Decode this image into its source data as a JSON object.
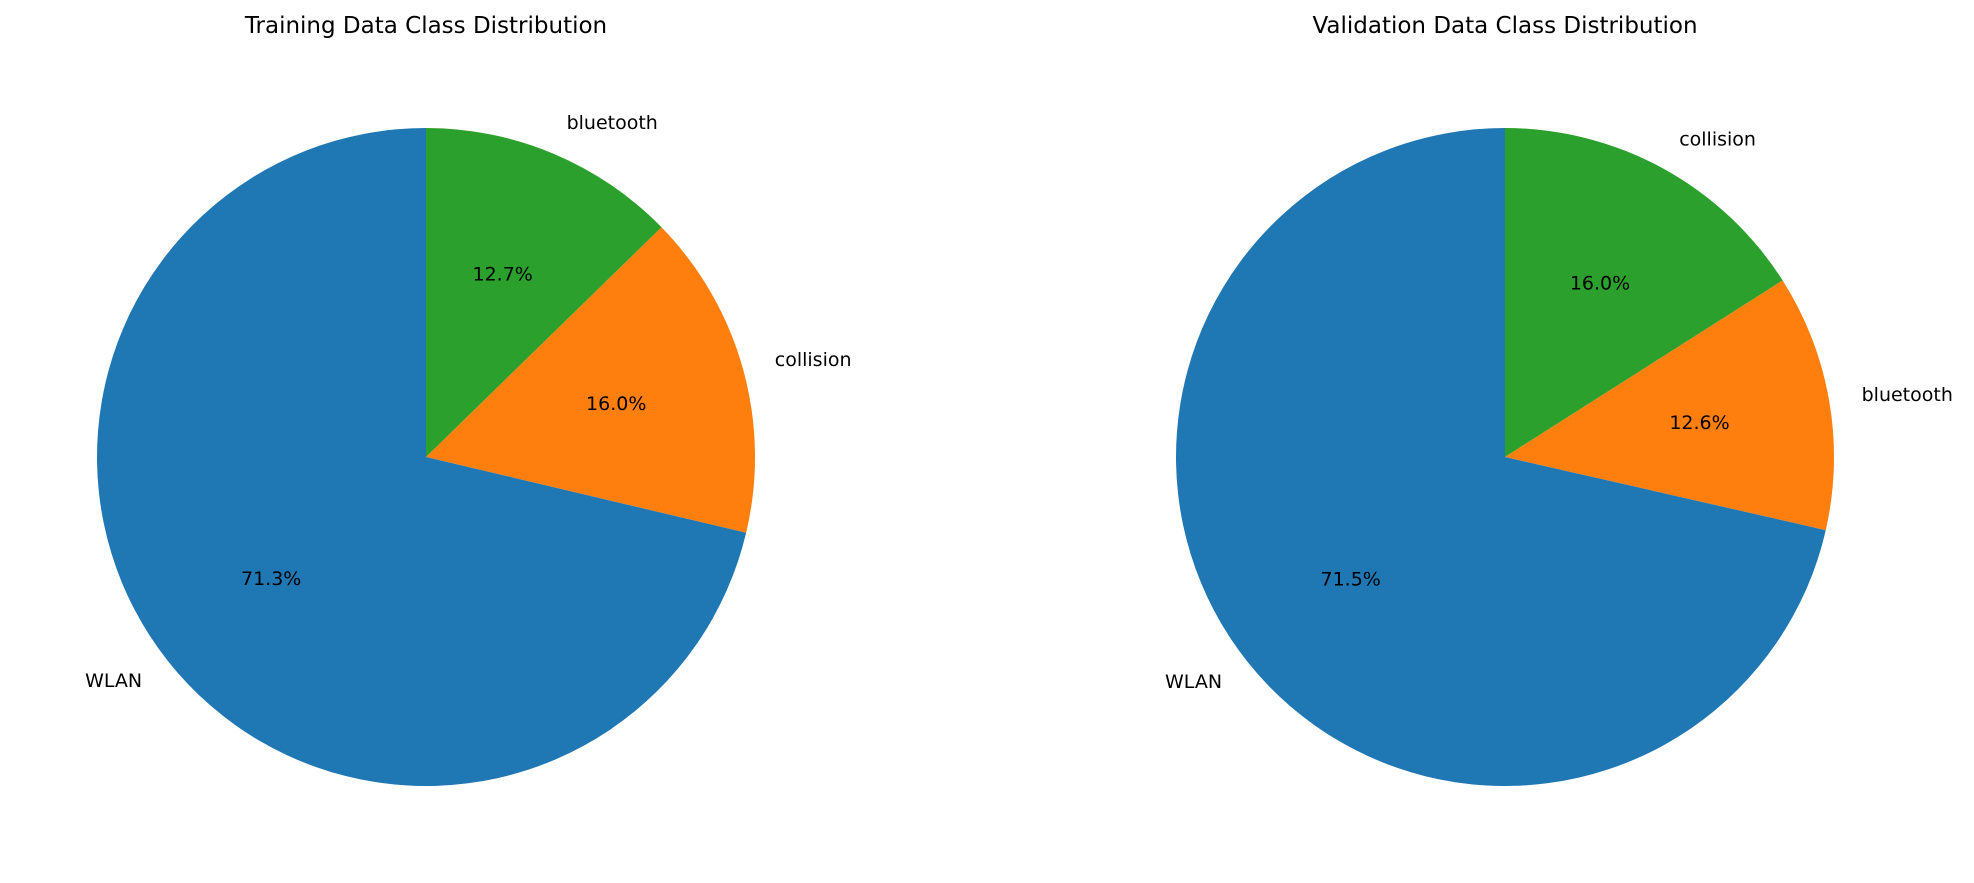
{
  "chart_data": [
    {
      "type": "pie",
      "title": "Training Data Class Distribution",
      "start_angle_deg": 90,
      "direction": "clockwise",
      "slices": [
        {
          "label": "bluetooth",
          "value": 12.7,
          "pct_label": "12.7%",
          "color": "#2ca02c"
        },
        {
          "label": "collision",
          "value": 16.0,
          "pct_label": "16.0%",
          "color": "#ff7f0e"
        },
        {
          "label": "WLAN",
          "value": 71.3,
          "pct_label": "71.3%",
          "color": "#1f77b4"
        }
      ]
    },
    {
      "type": "pie",
      "title": "Validation Data Class Distribution",
      "start_angle_deg": 90,
      "direction": "clockwise",
      "slices": [
        {
          "label": "collision",
          "value": 16.0,
          "pct_label": "16.0%",
          "color": "#2ca02c"
        },
        {
          "label": "bluetooth",
          "value": 12.6,
          "pct_label": "12.6%",
          "color": "#ff7f0e"
        },
        {
          "label": "WLAN",
          "value": 71.5,
          "pct_label": "71.5%",
          "color": "#1f77b4"
        }
      ]
    }
  ]
}
